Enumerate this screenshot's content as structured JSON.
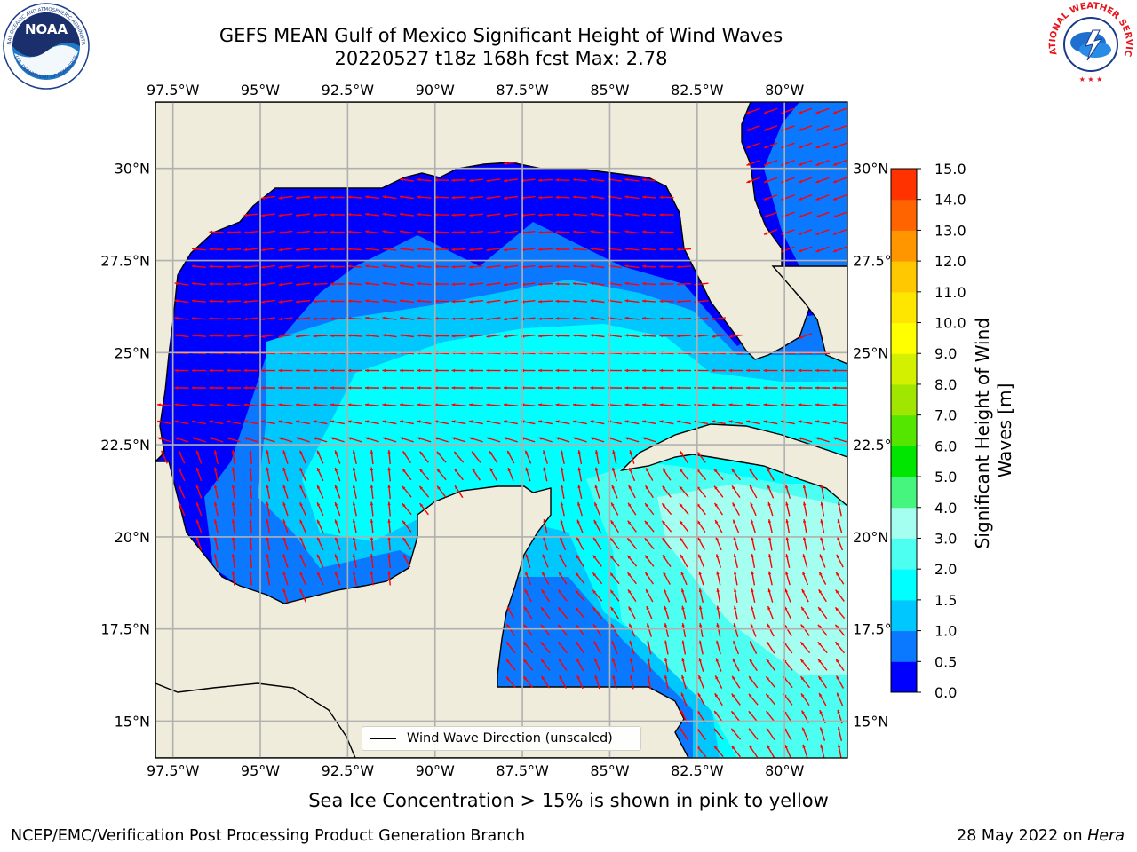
{
  "header": {
    "title": "GEFS MEAN Gulf of Mexico Significant Height of Wind Waves",
    "subtitle": "20220527 t18z 168h fcst   Max: 2.78"
  },
  "map": {
    "lon_labels": [
      "97.5°W",
      "95°W",
      "92.5°W",
      "90°W",
      "87.5°W",
      "85°W",
      "82.5°W",
      "80°W"
    ],
    "lat_labels": [
      "30°N",
      "27.5°N",
      "25°N",
      "22.5°N",
      "20°N",
      "17.5°N",
      "15°N"
    ],
    "lon_range": [
      -98,
      -78.2
    ],
    "lat_range": [
      14.0,
      31.8
    ],
    "land_color": "#efecdc",
    "arrow_color": "#ff0000",
    "legend_label": "Wind Wave Direction (unscaled)"
  },
  "colorbar": {
    "label": "Significant Height of Wind Waves [m]",
    "ticks": [
      "0.0",
      "0.5",
      "1.0",
      "1.5",
      "2.0",
      "3.0",
      "4.0",
      "5.0",
      "6.0",
      "7.0",
      "8.0",
      "9.0",
      "10.0",
      "11.0",
      "12.0",
      "13.0",
      "14.0",
      "15.0"
    ],
    "colors": [
      "#0000ff",
      "#0a78ff",
      "#00c8ff",
      "#00ffff",
      "#4dfff0",
      "#a5fff0",
      "#46f57d",
      "#00e600",
      "#55e600",
      "#a0e600",
      "#d2f000",
      "#ffff00",
      "#ffe600",
      "#ffc800",
      "#ff9600",
      "#ff6400",
      "#ff3200",
      "#ff0000"
    ]
  },
  "notes": {
    "ice": "Sea Ice Concentration > 15% is shown in pink to yellow",
    "branch": "NCEP/EMC/Verification Post Processing Product Generation Branch",
    "date_prefix": "28 May 2022 on ",
    "date_machine": "Hera"
  },
  "logos": {
    "left": "NOAA",
    "left_ring_top": "NATIONAL OCEANIC AND ATMOSPHERIC ADMINISTRATION",
    "left_ring_bottom": "U.S. DEPARTMENT OF COMMERCE",
    "right_ring": "NATIONAL WEATHER SERVICE"
  }
}
